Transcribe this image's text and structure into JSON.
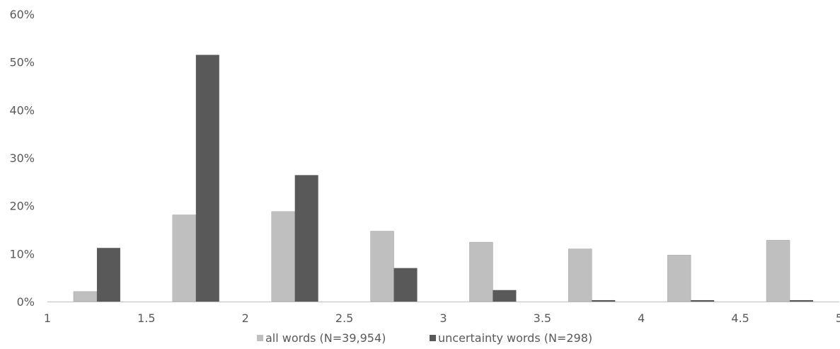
{
  "chart_data": {
    "type": "bar",
    "ytick_labels": [
      "0%",
      "10%",
      "20%",
      "30%",
      "40%",
      "50%",
      "60%"
    ],
    "ylim": [
      0,
      60
    ],
    "xtick_labels": [
      "1",
      "1.5",
      "2",
      "2.5",
      "3",
      "3.5",
      "4",
      "4.5",
      "5"
    ],
    "xlim": [
      1,
      5
    ],
    "bin_centers": [
      1.25,
      1.75,
      2.25,
      2.75,
      3.25,
      3.75,
      4.25,
      4.75
    ],
    "series": [
      {
        "name": "all words (N=39,954)",
        "color": "#bfbfbf",
        "values": [
          2.1,
          18.1,
          18.8,
          14.7,
          12.4,
          11.0,
          9.7,
          12.8
        ]
      },
      {
        "name": "uncertainty words (N=298)",
        "color": "#595959",
        "values": [
          11.2,
          51.5,
          26.4,
          7.0,
          2.4,
          0.3,
          0.3,
          0.3
        ]
      }
    ],
    "grid": false,
    "legend_position": "bottom"
  }
}
